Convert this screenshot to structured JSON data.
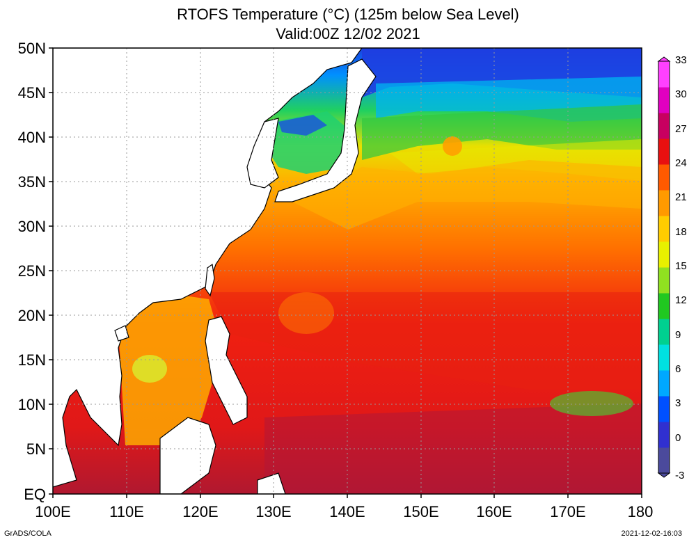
{
  "title": {
    "line1": "RTOFS Temperature (°C) (125m below Sea Level)",
    "line2": "Valid:00Z 12/02 2021"
  },
  "axes": {
    "y_ticks": [
      "50N",
      "45N",
      "40N",
      "35N",
      "30N",
      "25N",
      "20N",
      "15N",
      "10N",
      "5N",
      "EQ"
    ],
    "x_ticks": [
      "100E",
      "110E",
      "120E",
      "130E",
      "140E",
      "150E",
      "160E",
      "170E",
      "180"
    ]
  },
  "colorbar": {
    "ticks": [
      "33",
      "30",
      "27",
      "24",
      "21",
      "18",
      "15",
      "12",
      "9",
      "6",
      "3",
      "0",
      "-3"
    ],
    "colors": [
      "#4b4a9c",
      "#3030d0",
      "#0050ff",
      "#00a8ff",
      "#00e0e0",
      "#00d090",
      "#20c820",
      "#90e020",
      "#e8f000",
      "#ffcc00",
      "#ff9a00",
      "#ff5a00",
      "#e81010",
      "#c80060",
      "#e000c0",
      "#ff40ff"
    ]
  },
  "footer": {
    "credit": "GrADS/COLA",
    "timestamp": "2021-12-02-16:03"
  }
}
